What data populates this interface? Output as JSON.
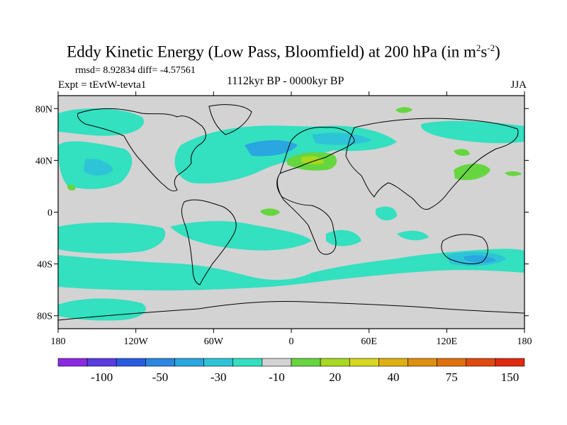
{
  "title": {
    "main": "Eddy Kinetic Energy (Low Pass, Bloomfield) at 200 hPa (in m",
    "sup1": "2",
    "mid": "s",
    "sup2": "-2",
    "end": ")"
  },
  "stats": {
    "rmsd": "rmsd= 8.92834 diff= -4.57561"
  },
  "expt": "Expt = tEvtW-tevta1",
  "period": "1112kyr BP - 0000kyr BP",
  "season": "JJA",
  "map": {
    "lat_ticks": [
      {
        "value": 80,
        "label": "80N"
      },
      {
        "value": 40,
        "label": "40N"
      },
      {
        "value": 0,
        "label": "0"
      },
      {
        "value": -40,
        "label": "40S"
      },
      {
        "value": -80,
        "label": "80S"
      }
    ],
    "lon_ticks": [
      {
        "value": -180,
        "label": "180"
      },
      {
        "value": -120,
        "label": "120W"
      },
      {
        "value": -60,
        "label": "60W"
      },
      {
        "value": 0,
        "label": "0"
      },
      {
        "value": 60,
        "label": "60E"
      },
      {
        "value": 120,
        "label": "120E"
      },
      {
        "value": 180,
        "label": "180"
      }
    ],
    "colors": {
      "background": "#d3d3d3",
      "light_cyan": "#33e0c0",
      "cyan_blue": "#2ec4d8",
      "blue": "#2aa6e0",
      "green": "#66d640",
      "yellow_green": "#a8d820"
    }
  },
  "colorbar": {
    "colors": [
      "#8a2be2",
      "#5a3ce0",
      "#2a5ce0",
      "#2a86e0",
      "#2aa6e0",
      "#2ec4d8",
      "#33e0c0",
      "#d3d3d3",
      "#66d640",
      "#a8d820",
      "#d8d820",
      "#e0b010",
      "#e09010",
      "#e07010",
      "#e04a10",
      "#e02a10"
    ],
    "labels": [
      {
        "index": 2,
        "text": "-100"
      },
      {
        "index": 4,
        "text": "-50"
      },
      {
        "index": 6,
        "text": "-30"
      },
      {
        "index": 8,
        "text": "-10"
      },
      {
        "index": 10,
        "text": "20"
      },
      {
        "index": 12,
        "text": "40"
      },
      {
        "index": 14,
        "text": "75"
      },
      {
        "index": 16,
        "text": "150"
      }
    ]
  }
}
